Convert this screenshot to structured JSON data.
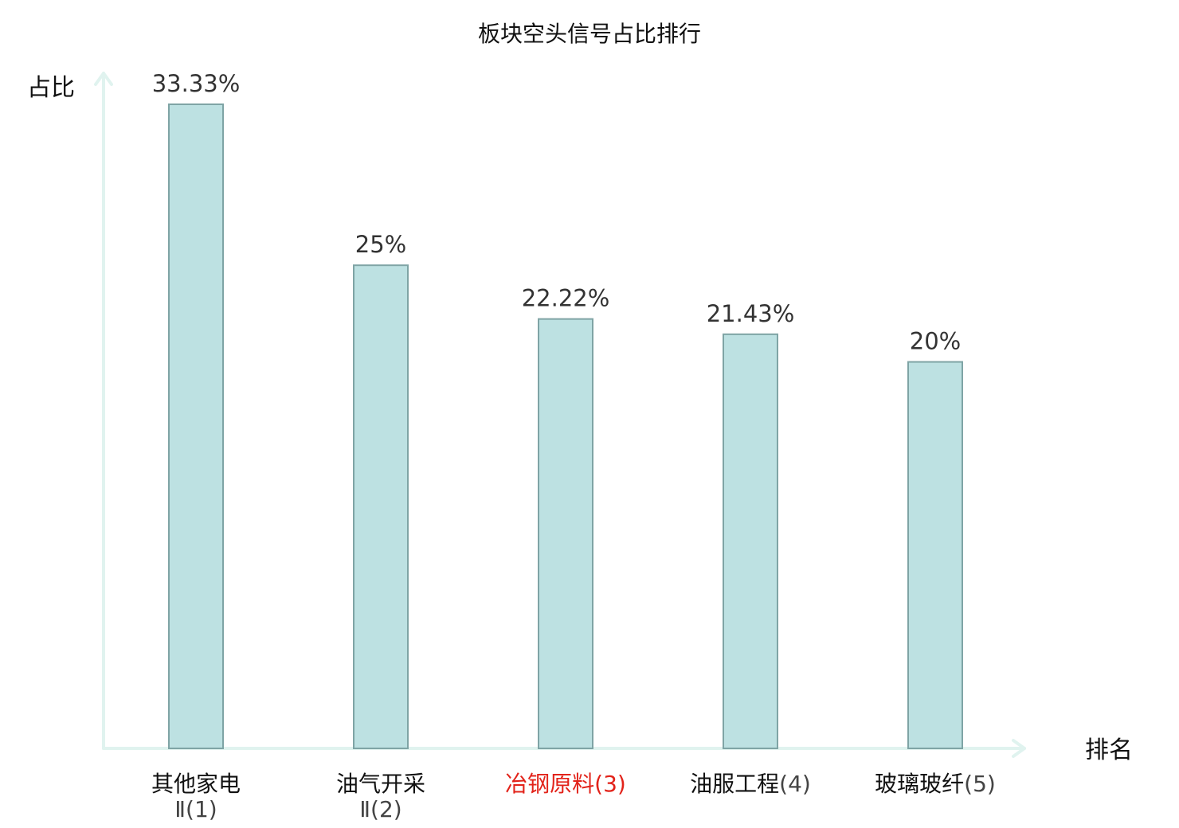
{
  "chart_data": {
    "type": "bar",
    "title": "板块空头信号占比排行",
    "ylabel": "占比",
    "xlabel": "排名",
    "ylim": [
      0,
      33.33
    ],
    "grid": false,
    "colors": {
      "bar_fill": "#bde1e2",
      "bar_stroke": "#7fa4a5",
      "axis": "#e0f3ef",
      "highlight_label": "#e2231a",
      "label": "#111111",
      "rank": "#444444"
    },
    "categories": [
      {
        "name": "其他家电",
        "suffix": "Ⅱ",
        "rank": "(1)",
        "wrap": true,
        "highlight": false
      },
      {
        "name": "油气开采",
        "suffix": "Ⅱ",
        "rank": "(2)",
        "wrap": true,
        "highlight": false
      },
      {
        "name": "冶钢原料",
        "suffix": "",
        "rank": "(3)",
        "wrap": false,
        "highlight": true
      },
      {
        "name": "油服工程",
        "suffix": "",
        "rank": "(4)",
        "wrap": false,
        "highlight": false
      },
      {
        "name": "玻璃玻纤",
        "suffix": "",
        "rank": "(5)",
        "wrap": false,
        "highlight": false
      }
    ],
    "values": [
      33.33,
      25,
      22.22,
      21.43,
      20
    ],
    "value_labels": [
      "33.33%",
      "25%",
      "22.22%",
      "21.43%",
      "20%"
    ]
  }
}
